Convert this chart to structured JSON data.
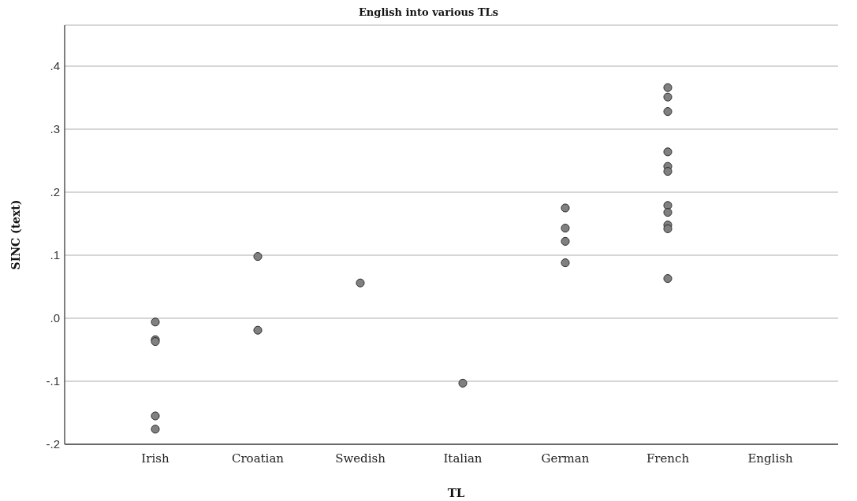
{
  "chart_data": {
    "type": "scatter",
    "title": "English into various TLs",
    "xlabel": "TL",
    "ylabel": "SINC (text)",
    "categories": [
      "Irish",
      "Croatian",
      "Swedish",
      "Italian",
      "German",
      "French",
      "English"
    ],
    "series": [
      {
        "color": "#808080",
        "x": [
          "Irish",
          "Irish",
          "Irish",
          "Irish",
          "Irish",
          "Croatian",
          "Croatian",
          "Swedish",
          "Italian",
          "German",
          "German",
          "German",
          "German",
          "French",
          "French",
          "French",
          "French",
          "French",
          "French",
          "French",
          "French",
          "French",
          "French",
          "French"
        ],
        "values": [
          -0.006,
          -0.034,
          -0.037,
          -0.155,
          -0.176,
          0.098,
          -0.019,
          0.056,
          -0.103,
          0.175,
          0.143,
          0.122,
          0.088,
          0.366,
          0.351,
          0.328,
          0.264,
          0.241,
          0.233,
          0.179,
          0.168,
          0.148,
          0.142,
          0.063
        ]
      }
    ],
    "ylim": [
      -0.2,
      0.465
    ],
    "yticks": [
      {
        "value": -0.2,
        "label": "-.2"
      },
      {
        "value": -0.1,
        "label": "-.1"
      },
      {
        "value": 0,
        "label": ".0"
      },
      {
        "value": 0.1,
        "label": ".1"
      },
      {
        "value": 0.2,
        "label": ".2"
      },
      {
        "value": 0.3,
        "label": ".3"
      },
      {
        "value": 0.4,
        "label": ".4"
      }
    ],
    "grid": "y",
    "marker": "circle"
  }
}
